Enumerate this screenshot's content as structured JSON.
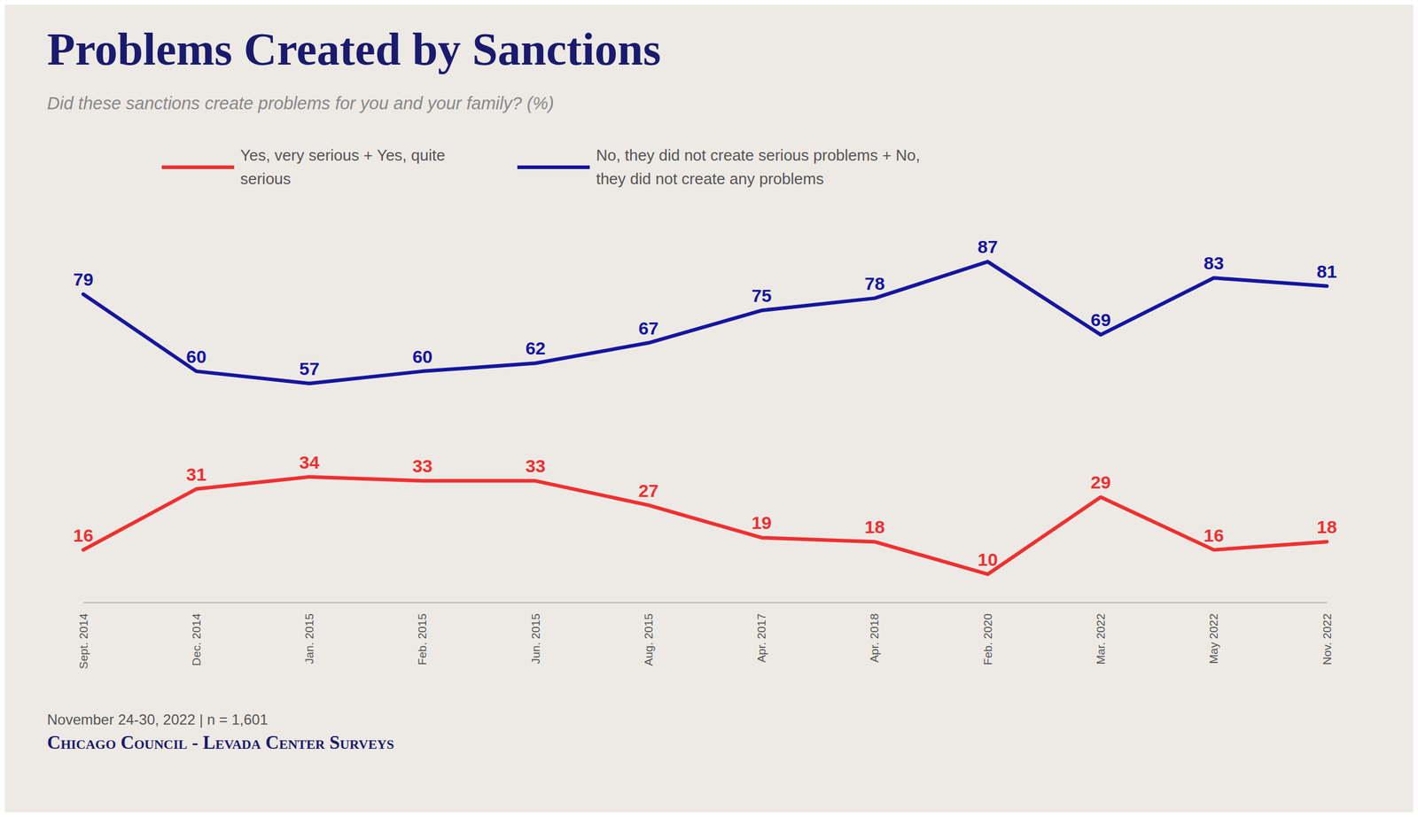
{
  "chart_data": {
    "type": "line",
    "title": "Problems Created by Sanctions",
    "subtitle": "Did these sanctions create problems for you and your family? (%)",
    "categories": [
      "Sept. 2014",
      "Dec. 2014",
      "Jan. 2015",
      "Feb. 2015",
      "Jun. 2015",
      "Aug. 2015",
      "Apr. 2017",
      "Apr. 2018",
      "Feb. 2020",
      "Mar. 2022",
      "May 2022",
      "Nov. 2022"
    ],
    "series": [
      {
        "name": "No, they did not create serious problems + No,\nthey did not create any problems",
        "color": "#1515a0",
        "values": [
          79,
          60,
          57,
          60,
          62,
          67,
          75,
          78,
          87,
          69,
          83,
          81
        ]
      },
      {
        "name": "Yes, very serious + Yes, quite\nserious",
        "color": "#f03030",
        "values": [
          16,
          31,
          34,
          33,
          33,
          27,
          19,
          18,
          10,
          29,
          16,
          18
        ]
      }
    ],
    "ylim": [
      3,
      100
    ],
    "grid": false,
    "legend": "top",
    "data_labels": true,
    "tick_labels": "x",
    "annotations": [
      "November 24-30, 2022 | n = 1,601",
      "Chicago Council - Levada Center Surveys"
    ]
  }
}
